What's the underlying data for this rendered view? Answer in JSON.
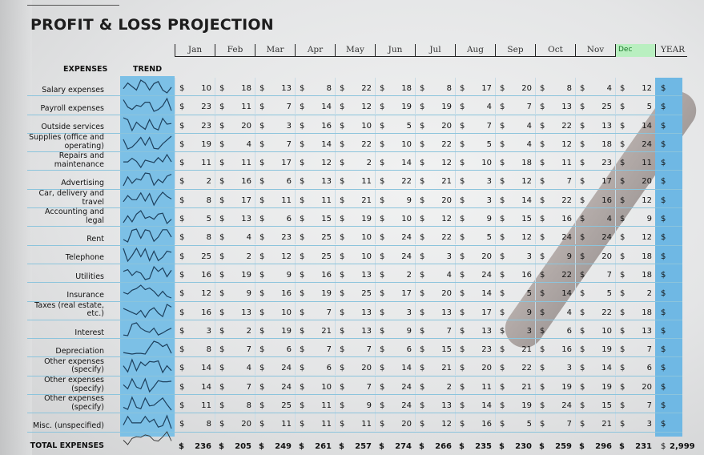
{
  "title": "PROFIT & LOSS PROJECTION",
  "months": [
    "Jan",
    "Feb",
    "Mar",
    "Apr",
    "May",
    "Jun",
    "Jul",
    "Aug",
    "Sep",
    "Oct",
    "Nov",
    "Dec",
    "YEAR"
  ],
  "headers": {
    "expenses": "EXPENSES",
    "trend": "TREND"
  },
  "currency": "$",
  "colors": {
    "trend_bg": "#7cc0e6",
    "selected_cell": "#b9efc0",
    "row_line": "#8cc4dc"
  },
  "rows": [
    {
      "label": "Salary expenses",
      "values": [
        10,
        18,
        13,
        8,
        22,
        18,
        8,
        17,
        20,
        8,
        4,
        12
      ]
    },
    {
      "label": "Payroll expenses",
      "values": [
        23,
        11,
        7,
        14,
        12,
        19,
        19,
        4,
        7,
        13,
        25,
        5
      ]
    },
    {
      "label": "Outside services",
      "values": [
        23,
        20,
        3,
        16,
        10,
        5,
        20,
        7,
        4,
        22,
        13,
        14
      ]
    },
    {
      "label": "Supplies (office and operating)",
      "values": [
        19,
        4,
        7,
        14,
        22,
        10,
        22,
        5,
        4,
        12,
        18,
        24
      ]
    },
    {
      "label": "Repairs and maintenance",
      "values": [
        11,
        11,
        17,
        12,
        2,
        14,
        12,
        10,
        18,
        11,
        23,
        11
      ]
    },
    {
      "label": "Advertising",
      "values": [
        2,
        16,
        6,
        13,
        11,
        22,
        21,
        3,
        12,
        7,
        17,
        20
      ]
    },
    {
      "label": "Car, delivery and travel",
      "values": [
        8,
        17,
        11,
        11,
        21,
        9,
        20,
        3,
        14,
        22,
        16,
        12
      ]
    },
    {
      "label": "Accounting and legal",
      "values": [
        5,
        13,
        6,
        15,
        19,
        10,
        12,
        9,
        15,
        16,
        4,
        9
      ]
    },
    {
      "label": "Rent",
      "values": [
        8,
        4,
        23,
        25,
        10,
        24,
        22,
        5,
        12,
        24,
        24,
        12
      ]
    },
    {
      "label": "Telephone",
      "values": [
        25,
        2,
        12,
        25,
        10,
        24,
        3,
        20,
        3,
        9,
        20,
        18
      ]
    },
    {
      "label": "Utilities",
      "values": [
        16,
        19,
        9,
        16,
        13,
        2,
        4,
        24,
        16,
        22,
        7,
        18
      ]
    },
    {
      "label": "Insurance",
      "values": [
        12,
        9,
        16,
        19,
        25,
        17,
        20,
        14,
        5,
        14,
        5,
        2
      ]
    },
    {
      "label": "Taxes (real estate, etc.)",
      "values": [
        16,
        13,
        10,
        7,
        13,
        3,
        13,
        17,
        9,
        4,
        22,
        18
      ]
    },
    {
      "label": "Interest",
      "values": [
        3,
        2,
        19,
        21,
        13,
        9,
        7,
        13,
        3,
        6,
        10,
        13
      ]
    },
    {
      "label": "Depreciation",
      "values": [
        8,
        7,
        6,
        7,
        7,
        6,
        15,
        23,
        21,
        16,
        19,
        7
      ]
    },
    {
      "label": "Other expenses (specify)",
      "values": [
        14,
        4,
        24,
        6,
        20,
        14,
        21,
        20,
        22,
        3,
        14,
        6
      ]
    },
    {
      "label": "Other expenses (specify)",
      "values": [
        14,
        7,
        24,
        10,
        7,
        24,
        2,
        11,
        21,
        19,
        19,
        20
      ]
    },
    {
      "label": "Other expenses (specify)",
      "values": [
        11,
        8,
        25,
        11,
        9,
        24,
        13,
        14,
        19,
        24,
        15,
        7
      ]
    },
    {
      "label": "Misc. (unspecified)",
      "values": [
        8,
        20,
        11,
        11,
        11,
        20,
        12,
        16,
        5,
        7,
        21,
        3
      ]
    }
  ],
  "total": {
    "label": "TOTAL EXPENSES",
    "values": [
      236,
      205,
      249,
      261,
      257,
      274,
      266,
      235,
      230,
      259,
      296,
      231
    ],
    "year": "2,999"
  }
}
